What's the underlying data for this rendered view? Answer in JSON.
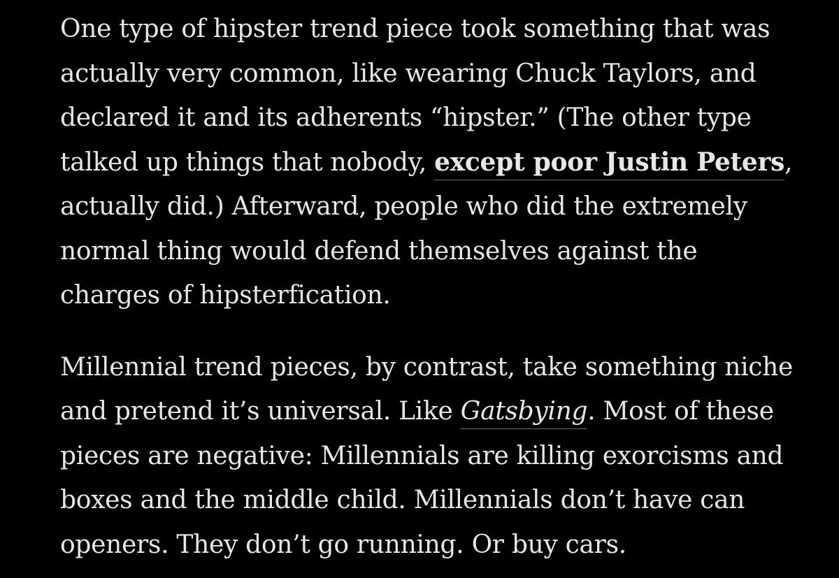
{
  "article": {
    "paragraph1": {
      "line1": "One type of hipster trend piece took something that was",
      "line2": "actually very common, like wearing Chuck Taylors, and",
      "line3": "declared it and its adherents “hipster.” (The other type",
      "line4_before": "talked up things that nobody, ",
      "line4_link": "except poor Justin Peters",
      "line4_after": ",",
      "line5": "actually did.) Afterward, people who did the extremely",
      "line6": "normal thing would defend themselves against the",
      "line7": "charges of hipsterfication."
    },
    "paragraph2": {
      "line1": "Millennial trend pieces, by contrast, take something niche",
      "line2_before": "and pretend it’s universal. Like ",
      "line2_link": "Gatsbying",
      "line2_after": ". Most of these",
      "line3": "pieces are negative: Millennials are killing exorcisms and",
      "line4": "boxes and the middle child. Millennials don’t have can",
      "line5": "openers. They don’t go running. Or buy cars."
    }
  },
  "colors": {
    "background": "#000000",
    "text": "#e6e6e6",
    "link_underline": "#6e6e6e"
  }
}
